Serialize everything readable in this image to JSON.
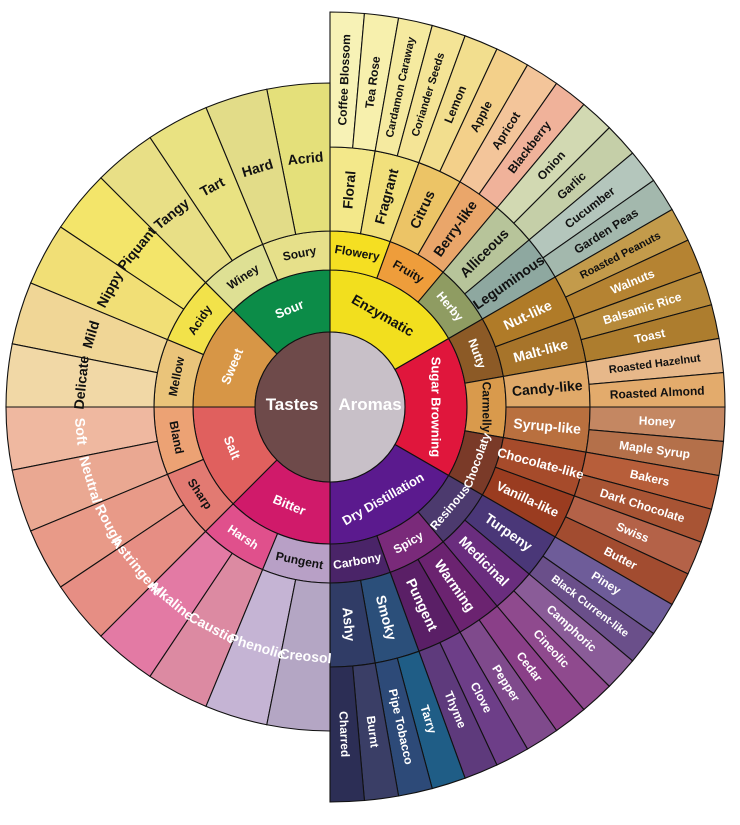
{
  "center": {
    "tastes": {
      "label": "Tastes",
      "color": "#6e4a4a"
    },
    "aromas": {
      "label": "Aromas",
      "color": "#c8c0c8"
    }
  },
  "aromas": [
    {
      "label": "Enzymatic",
      "color": "#f2df1e",
      "text": "#111111",
      "subs": [
        {
          "label": "Flowery",
          "color": "#f5df22",
          "outer": [
            {
              "label": "Floral",
              "color": "#f3e88a",
              "leaves": [
                {
                  "label": "Coffee Blossom",
                  "color": "#f7f2b6"
                },
                {
                  "label": "Tea Rose",
                  "color": "#f7f0ad"
                }
              ]
            },
            {
              "label": "Fragrant",
              "color": "#f1e07c",
              "leaves": [
                {
                  "label": "Cardamon Caraway",
                  "color": "#f5eaa0"
                },
                {
                  "label": "Coriander Seeds",
                  "color": "#f4e496"
                }
              ]
            }
          ]
        },
        {
          "label": "Fruity",
          "color": "#ee9d3b",
          "outer": [
            {
              "label": "Citrus",
              "color": "#ecc466",
              "leaves": [
                {
                  "label": "Lemon",
                  "color": "#f2de8e"
                },
                {
                  "label": "Apple",
                  "color": "#f3d08a"
                }
              ]
            },
            {
              "label": "Berry-like",
              "color": "#eaa66a",
              "leaves": [
                {
                  "label": "Apricot",
                  "color": "#f3c59a"
                },
                {
                  "label": "Blackberry",
                  "color": "#f0b29a"
                }
              ]
            }
          ]
        },
        {
          "label": "Herby",
          "color": "#8f9c62",
          "outer": [
            {
              "label": "Alliceous",
              "color": "#b7c49a",
              "leaves": [
                {
                  "label": "Onion",
                  "color": "#d2d9b2"
                },
                {
                  "label": "Garlic",
                  "color": "#c5cfa8"
                }
              ]
            },
            {
              "label": "Leguminous",
              "color": "#8ea8a0",
              "leaves": [
                {
                  "label": "Cucumber",
                  "color": "#b4c6bc"
                },
                {
                  "label": "Garden Peas",
                  "color": "#a3b8ad"
                }
              ]
            }
          ]
        }
      ]
    },
    {
      "label": "Sugar Browning",
      "color": "#e0163c",
      "text": "#ffffff",
      "subs": [
        {
          "label": "Nutty",
          "color": "#8c5a26",
          "outer": [
            {
              "label": "Nut-like",
              "color": "#b07b28",
              "leaves": [
                {
                  "label": "Roasted Peanuts",
                  "color": "#c39b4b"
                },
                {
                  "label": "Walnuts",
                  "color": "#b58332"
                }
              ]
            },
            {
              "label": "Malt-like",
              "color": "#a7742a",
              "leaves": [
                {
                  "label": "Balsamic Rice",
                  "color": "#b78a3a"
                },
                {
                  "label": "Toast",
                  "color": "#ad7d2e"
                }
              ]
            }
          ]
        },
        {
          "label": "Carmelly",
          "color": "#d99a4c",
          "outer": [
            {
              "label": "Candy-like",
              "color": "#e0a969",
              "leaves": [
                {
                  "label": "Roasted Hazelnut",
                  "color": "#e7b88a"
                },
                {
                  "label": "Roasted Almond",
                  "color": "#e3ab6c"
                }
              ]
            },
            {
              "label": "Syrup-like",
              "color": "#b9703f",
              "leaves": [
                {
                  "label": "Honey",
                  "color": "#c48762"
                },
                {
                  "label": "Maple Syrup",
                  "color": "#b4704a"
                }
              ]
            }
          ]
        },
        {
          "label": "Chocolaty",
          "color": "#7a3a28",
          "outer": [
            {
              "label": "Chocolate-like",
              "color": "#a64b2b",
              "leaves": [
                {
                  "label": "Bakers",
                  "color": "#b75e3a"
                },
                {
                  "label": "Dark Chocolate",
                  "color": "#a85434"
                }
              ]
            },
            {
              "label": "Vanilla-like",
              "color": "#9a3c20",
              "leaves": [
                {
                  "label": "Swiss",
                  "color": "#b46248"
                },
                {
                  "label": "Butter",
                  "color": "#a24c30"
                }
              ]
            }
          ]
        }
      ]
    },
    {
      "label": "Dry Distillation",
      "color": "#5b1a8e",
      "text": "#ffffff",
      "subs": [
        {
          "label": "Resinous",
          "color": "#4c3a6e",
          "outer": [
            {
              "label": "Turpeny",
              "color": "#4a3778",
              "leaves": [
                {
                  "label": "Piney",
                  "color": "#6e5c99"
                },
                {
                  "label": "Black Current-like",
                  "color": "#6a4f8a"
                }
              ]
            },
            {
              "label": "Medicinal",
              "color": "#6a2d7e",
              "leaves": [
                {
                  "label": "Camphoric",
                  "color": "#8a5c98"
                },
                {
                  "label": "Cineolic",
                  "color": "#8f4a8e"
                }
              ]
            }
          ]
        },
        {
          "label": "Spicy",
          "color": "#7a2a7a",
          "outer": [
            {
              "label": "Warming",
              "color": "#6b2370",
              "leaves": [
                {
                  "label": "Cedar",
                  "color": "#8a3f88"
                },
                {
                  "label": "Pepper",
                  "color": "#7f4a8c"
                }
              ]
            },
            {
              "label": "Pungent",
              "color": "#5a1f66",
              "leaves": [
                {
                  "label": "Clove",
                  "color": "#6d3e88"
                },
                {
                  "label": "Thyme",
                  "color": "#5e3a7c"
                }
              ]
            }
          ]
        },
        {
          "label": "Carbony",
          "color": "#4a2468",
          "outer": [
            {
              "label": "Smoky",
              "color": "#2b4f7a",
              "leaves": [
                {
                  "label": "Tarry",
                  "color": "#1f5d86"
                },
                {
                  "label": "Pipe Tobacco",
                  "color": "#2d4a78"
                }
              ]
            },
            {
              "label": "Ashy",
              "color": "#303c66",
              "leaves": [
                {
                  "label": "Burnt",
                  "color": "#3a3e66"
                },
                {
                  "label": "Charred",
                  "color": "#2c2e55"
                }
              ]
            }
          ]
        }
      ]
    }
  ],
  "tastes": [
    {
      "label": "Sour",
      "color": "#0c8c48",
      "text": "#ffffff",
      "subs": [
        {
          "label": "Soury",
          "color": "#e6e08a",
          "outer": [
            {
              "label": "Acrid",
              "color": "#e4e07a"
            },
            {
              "label": "Hard",
              "color": "#e2dc88"
            }
          ]
        },
        {
          "label": "Winey",
          "color": "#dee094",
          "outer": [
            {
              "label": "Tart",
              "color": "#e9e282"
            },
            {
              "label": "Tangy",
              "color": "#e8df86"
            }
          ]
        }
      ]
    },
    {
      "label": "Sweet",
      "color": "#d79646",
      "text": "#ffffff",
      "subs": [
        {
          "label": "Acidy",
          "color": "#f2e24a",
          "outer": [
            {
              "label": "Piquant",
              "color": "#f3e56a"
            },
            {
              "label": "Nippy",
              "color": "#f1df76"
            }
          ]
        },
        {
          "label": "Mellow",
          "color": "#eac47a",
          "outer": [
            {
              "label": "Mild",
              "color": "#f0d696"
            },
            {
              "label": "Delicate",
              "color": "#f1d8a6"
            }
          ]
        }
      ]
    },
    {
      "label": "Salt",
      "color": "#e0605e",
      "text": "#ffffff",
      "subs": [
        {
          "label": "Bland",
          "color": "#eca274",
          "outer": [
            {
              "label": "Soft",
              "color": "#efb8a0"
            },
            {
              "label": "Neutral",
              "color": "#eaa892"
            }
          ]
        },
        {
          "label": "Sharp",
          "color": "#e27a72",
          "outer": [
            {
              "label": "Rough",
              "color": "#e89a88"
            },
            {
              "label": "Astringent",
              "color": "#e68e84"
            }
          ]
        }
      ]
    },
    {
      "label": "Bitter",
      "color": "#d01a6a",
      "text": "#ffffff",
      "subs": [
        {
          "label": "Harsh",
          "color": "#e0508c",
          "outer": [
            {
              "label": "Alkaline",
              "color": "#e37aa4"
            },
            {
              "label": "Caustic",
              "color": "#dc8aa2"
            }
          ]
        },
        {
          "label": "Pungent",
          "color": "#b8a0c6",
          "outer": [
            {
              "label": "Phenolic",
              "color": "#c5b4d4"
            },
            {
              "label": "Creosol",
              "color": "#b4a6c4"
            }
          ]
        }
      ]
    }
  ]
}
